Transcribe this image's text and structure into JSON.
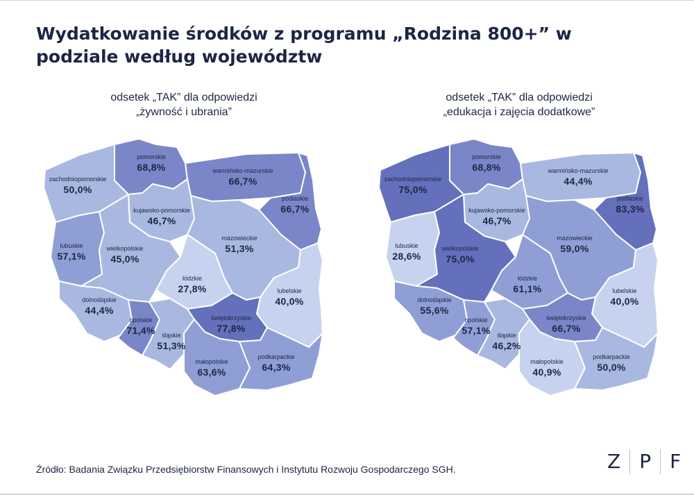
{
  "title": "Wydatkowanie środków z programu „Rodzina 800+” w podziale według województw",
  "source": "Źródło: Badania Związku Przedsiębiorstw Finansowych i Instytutu Rozwoju Gospodarczego SGH.",
  "logo": {
    "letters": [
      "Z",
      "P",
      "F"
    ]
  },
  "palette": {
    "lightest": "#c7d3ee",
    "light": "#a9b8e0",
    "medium": "#8f9fd6",
    "dark": "#7a86c8",
    "darkest": "#6470bb"
  },
  "maps": [
    {
      "subtitle_line1": "odsetek „TAK” dla odpowiedzi",
      "subtitle_line2": "„żywność i ubrania”",
      "regions": [
        {
          "name": "pomorskie",
          "value": "68,8%",
          "value_num": 68.8
        },
        {
          "name": "zachodniopomorskie",
          "value": "50,0%",
          "value_num": 50.0
        },
        {
          "name": "warmińsko-mazurskie",
          "value": "66,7%",
          "value_num": 66.7
        },
        {
          "name": "podlaskie",
          "value": "66,7%",
          "value_num": 66.7
        },
        {
          "name": "kujawsko-pomorskie",
          "value": "46,7%",
          "value_num": 46.7
        },
        {
          "name": "lubuskie",
          "value": "57,1%",
          "value_num": 57.1
        },
        {
          "name": "wielkopolskie",
          "value": "45,0%",
          "value_num": 45.0
        },
        {
          "name": "mazowieckie",
          "value": "51,3%",
          "value_num": 51.3
        },
        {
          "name": "łódzkie",
          "value": "27,8%",
          "value_num": 27.8
        },
        {
          "name": "lubelskie",
          "value": "40,0%",
          "value_num": 40.0
        },
        {
          "name": "dolnośląskie",
          "value": "44,4%",
          "value_num": 44.4
        },
        {
          "name": "opolskie",
          "value": "71,4%",
          "value_num": 71.4
        },
        {
          "name": "śląskie",
          "value": "51,3%",
          "value_num": 51.3
        },
        {
          "name": "świętokrzyskie",
          "value": "77,8%",
          "value_num": 77.8
        },
        {
          "name": "małopolskie",
          "value": "63,6%",
          "value_num": 63.6
        },
        {
          "name": "podkarpackie",
          "value": "64,3%",
          "value_num": 64.3
        }
      ]
    },
    {
      "subtitle_line1": "odsetek „TAK” dla odpowiedzi",
      "subtitle_line2": "„edukacja i zajęcia dodatkowe”",
      "regions": [
        {
          "name": "pomorskie",
          "value": "68,8%",
          "value_num": 68.8
        },
        {
          "name": "zachodniopomorskie",
          "value": "75,0%",
          "value_num": 75.0
        },
        {
          "name": "warmińsko-mazurskie",
          "value": "44,4%",
          "value_num": 44.4
        },
        {
          "name": "podlaskie",
          "value": "83,3%",
          "value_num": 83.3
        },
        {
          "name": "kujawsko-pomorskie",
          "value": "46,7%",
          "value_num": 46.7
        },
        {
          "name": "lubuskie",
          "value": "28,6%",
          "value_num": 28.6
        },
        {
          "name": "wielkopolskie",
          "value": "75,0%",
          "value_num": 75.0
        },
        {
          "name": "mazowieckie",
          "value": "59,0%",
          "value_num": 59.0
        },
        {
          "name": "łódzkie",
          "value": "61,1%",
          "value_num": 61.1
        },
        {
          "name": "lubelskie",
          "value": "40,0%",
          "value_num": 40.0
        },
        {
          "name": "dolnośląskie",
          "value": "55,6%",
          "value_num": 55.6
        },
        {
          "name": "opolskie",
          "value": "57,1%",
          "value_num": 57.1
        },
        {
          "name": "śląskie",
          "value": "46,2%",
          "value_num": 46.2
        },
        {
          "name": "świętokrzyskie",
          "value": "66,7%",
          "value_num": 66.7
        },
        {
          "name": "małopolskie",
          "value": "40,9%",
          "value_num": 40.9
        },
        {
          "name": "podkarpackie",
          "value": "50,0%",
          "value_num": 50.0
        }
      ]
    }
  ]
}
